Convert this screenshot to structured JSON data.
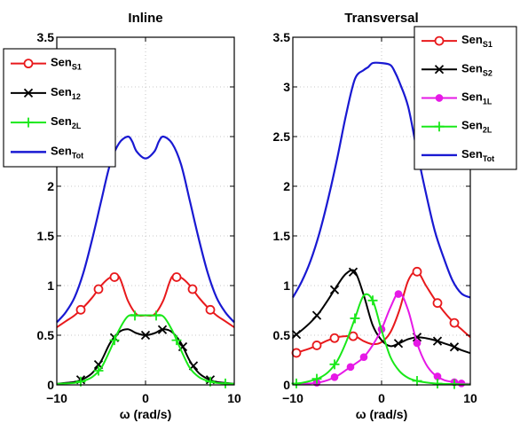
{
  "chart_data": [
    {
      "type": "line",
      "title": "Inline",
      "xlabel": "ω (rad/s)",
      "ylabel": "",
      "xlim": [
        -10,
        10
      ],
      "ylim": [
        0,
        3.5
      ],
      "xticks": [
        -10,
        0,
        10
      ],
      "xtick_labels": [
        "−10",
        "0",
        "10"
      ],
      "yticks": [
        0,
        0.5,
        1,
        1.5,
        2,
        2.5,
        3,
        3.5
      ],
      "ytick_labels": [
        "0",
        "0.5",
        "1",
        "1.5",
        "2",
        "2.5",
        "3",
        "3.5"
      ],
      "grid": true,
      "legend_position": "top-left",
      "series": [
        {
          "name": "Sen",
          "name_sub": "S1",
          "color": "#e8191c",
          "marker": "circle",
          "x": [
            -10,
            -9,
            -8,
            -7,
            -6,
            -5,
            -4,
            -3,
            -2,
            -1,
            0,
            1,
            2,
            3,
            4,
            5,
            6,
            7,
            8,
            9,
            10
          ],
          "y": [
            0.58,
            0.64,
            0.7,
            0.78,
            0.88,
            1.0,
            1.08,
            1.09,
            0.85,
            0.71,
            0.7,
            0.71,
            0.85,
            1.09,
            1.08,
            1.0,
            0.88,
            0.78,
            0.7,
            0.64,
            0.58
          ],
          "marker_x": [
            -7.3,
            -5.3,
            -3.5,
            3.5,
            5.3,
            7.3
          ]
        },
        {
          "name": "Sen",
          "name_sub": "12",
          "color": "#000000",
          "marker": "x",
          "x": [
            -10,
            -9,
            -8,
            -7,
            -6,
            -5,
            -4,
            -3,
            -2,
            -1,
            0,
            1,
            2,
            3,
            4,
            5,
            6,
            7,
            8,
            9,
            10
          ],
          "y": [
            0.01,
            0.02,
            0.03,
            0.06,
            0.12,
            0.24,
            0.42,
            0.53,
            0.56,
            0.52,
            0.5,
            0.52,
            0.56,
            0.53,
            0.42,
            0.24,
            0.12,
            0.06,
            0.03,
            0.02,
            0.01
          ],
          "marker_x": [
            -7.3,
            -5.3,
            -3.5,
            0,
            1.9,
            4.2,
            5.4,
            7.3
          ]
        },
        {
          "name": "Sen",
          "name_sub": "2L",
          "color": "#19e819",
          "marker": "plus",
          "x": [
            -10,
            -9,
            -8,
            -7,
            -6,
            -5,
            -4,
            -3,
            -2,
            -1,
            0,
            1,
            2,
            3,
            4,
            5,
            6,
            7,
            8,
            9,
            10
          ],
          "y": [
            0.01,
            0.015,
            0.02,
            0.04,
            0.08,
            0.17,
            0.35,
            0.55,
            0.69,
            0.7,
            0.7,
            0.7,
            0.69,
            0.55,
            0.35,
            0.17,
            0.08,
            0.04,
            0.02,
            0.015,
            0.01
          ],
          "marker_x": [
            -7.3,
            -5.3,
            -3.5,
            -1.2,
            1.2,
            3.5,
            7.3,
            9.0
          ]
        },
        {
          "name": "Sen",
          "name_sub": "Tot",
          "color": "#1919d2",
          "marker": "none",
          "x": [
            -10,
            -9,
            -8,
            -7,
            -6,
            -5,
            -4,
            -3,
            -2,
            -1.5,
            -1,
            0,
            1,
            1.5,
            2,
            3,
            4,
            5,
            6,
            7,
            8,
            9,
            10
          ],
          "y": [
            0.63,
            0.73,
            0.88,
            1.13,
            1.47,
            1.85,
            2.22,
            2.43,
            2.5,
            2.45,
            2.35,
            2.28,
            2.35,
            2.45,
            2.5,
            2.43,
            2.22,
            1.85,
            1.47,
            1.13,
            0.88,
            0.73,
            0.63
          ],
          "marker_x": []
        }
      ]
    },
    {
      "type": "line",
      "title": "Transversal",
      "xlabel": "ω (rad/s)",
      "ylabel": "",
      "xlim": [
        -10,
        10
      ],
      "ylim": [
        0,
        3.5
      ],
      "xticks": [
        -10,
        0,
        10
      ],
      "xtick_labels": [
        "−10",
        "0",
        "10"
      ],
      "yticks": [
        0,
        0.5,
        1,
        1.5,
        2,
        2.5,
        3,
        3.5
      ],
      "ytick_labels": [
        "0",
        "0.5",
        "1",
        "1.5",
        "2",
        "2.5",
        "3",
        "3.5"
      ],
      "grid": true,
      "legend_position": "top-right",
      "series": [
        {
          "name": "Sen",
          "name_sub": "S1",
          "color": "#e8191c",
          "marker": "circle",
          "x": [
            -10,
            -9,
            -8,
            -7,
            -6,
            -5,
            -4,
            -3,
            -2,
            -1,
            0,
            1,
            2,
            3,
            4,
            5,
            6,
            7,
            8,
            9,
            10
          ],
          "y": [
            0.31,
            0.34,
            0.37,
            0.41,
            0.45,
            0.48,
            0.49,
            0.49,
            0.44,
            0.41,
            0.43,
            0.53,
            0.75,
            1.05,
            1.14,
            1.0,
            0.86,
            0.74,
            0.64,
            0.56,
            0.48
          ],
          "marker_x": [
            -9.6,
            -7.3,
            -5.3,
            -3.2,
            4.0,
            6.3,
            8.2
          ]
        },
        {
          "name": "Sen",
          "name_sub": "S2",
          "color": "#000000",
          "marker": "x",
          "x": [
            -10,
            -9,
            -8,
            -7,
            -6,
            -5,
            -4,
            -3,
            -2,
            -1,
            0,
            1,
            2,
            3,
            4,
            5,
            6,
            7,
            8,
            9,
            10
          ],
          "y": [
            0.48,
            0.55,
            0.63,
            0.73,
            0.86,
            1.0,
            1.12,
            1.14,
            0.9,
            0.6,
            0.45,
            0.39,
            0.42,
            0.46,
            0.48,
            0.47,
            0.45,
            0.42,
            0.39,
            0.35,
            0.32
          ],
          "marker_x": [
            -9.6,
            -7.3,
            -5.3,
            -3.2,
            1.9,
            4.0,
            6.3,
            8.2
          ]
        },
        {
          "name": "Sen",
          "name_sub": "1L",
          "color": "#e619e6",
          "marker": "dot",
          "x": [
            -10,
            -9,
            -8,
            -7,
            -6,
            -5,
            -4,
            -3,
            -2,
            -1,
            0,
            1,
            2,
            3,
            4,
            5,
            6,
            7,
            8,
            9,
            10
          ],
          "y": [
            0.005,
            0.01,
            0.015,
            0.025,
            0.05,
            0.09,
            0.15,
            0.21,
            0.28,
            0.4,
            0.56,
            0.78,
            0.93,
            0.75,
            0.42,
            0.21,
            0.1,
            0.05,
            0.03,
            0.015,
            0.01
          ],
          "marker_x": [
            -7.3,
            -5.3,
            -3.5,
            -2.0,
            0,
            1.9,
            4.0,
            6.3,
            8.2,
            9.0
          ]
        },
        {
          "name": "Sen",
          "name_sub": "2L",
          "color": "#19e819",
          "marker": "plus",
          "x": [
            -10,
            -9,
            -8,
            -7,
            -6,
            -5,
            -4,
            -3,
            -2,
            -1,
            0,
            1,
            2,
            3,
            4,
            5,
            6,
            7,
            8,
            9,
            10
          ],
          "y": [
            0.01,
            0.02,
            0.04,
            0.07,
            0.13,
            0.24,
            0.43,
            0.67,
            0.9,
            0.85,
            0.55,
            0.28,
            0.14,
            0.07,
            0.04,
            0.025,
            0.015,
            0.01,
            0.008,
            0.005,
            0.004
          ],
          "marker_x": [
            -9.6,
            -7.3,
            -5.3,
            -3.0,
            -1.0,
            4.0,
            6.3,
            8.2
          ]
        },
        {
          "name": "Sen",
          "name_sub": "Tot",
          "color": "#1919d2",
          "marker": "none",
          "x": [
            -10,
            -9,
            -8,
            -7,
            -6,
            -5,
            -4,
            -3,
            -2,
            -1.5,
            -1,
            0,
            1,
            1.5,
            2,
            3,
            4,
            5,
            6,
            7,
            8,
            9,
            10
          ],
          "y": [
            0.88,
            1.04,
            1.25,
            1.53,
            1.88,
            2.28,
            2.72,
            3.08,
            3.17,
            3.2,
            3.24,
            3.24,
            3.22,
            3.15,
            3.05,
            2.8,
            2.35,
            1.93,
            1.55,
            1.28,
            1.05,
            0.92,
            0.88
          ],
          "marker_x": []
        }
      ]
    }
  ]
}
